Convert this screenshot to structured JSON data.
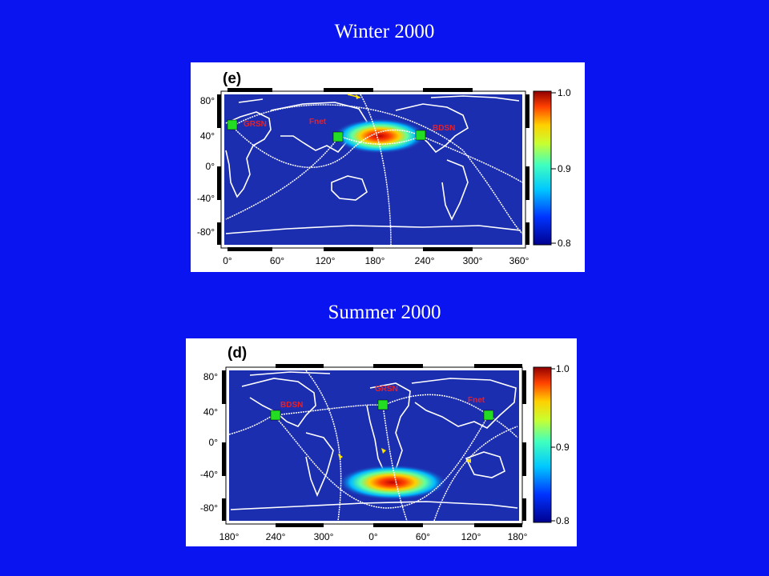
{
  "slide": {
    "title_top": "Winter 2000",
    "title_bottom": "Summer 2000"
  },
  "panels": [
    {
      "id": "e",
      "label": "(e)",
      "lat_ticks": [
        "80°",
        "40°",
        "0°",
        "-40°",
        "-80°"
      ],
      "lon_ticks": [
        "0°",
        "60°",
        "120°",
        "180°",
        "240°",
        "300°",
        "360°"
      ],
      "colorbar_ticks": [
        "1.0",
        "0.9",
        "0.8"
      ],
      "stations": [
        "GRSN",
        "Fnet",
        "BDSN"
      ]
    },
    {
      "id": "d",
      "label": "(d)",
      "lat_ticks": [
        "80°",
        "40°",
        "0°",
        "-40°",
        "-80°"
      ],
      "lon_ticks": [
        "180°",
        "240°",
        "300°",
        "0°",
        "60°",
        "120°",
        "180°"
      ],
      "colorbar_ticks": [
        "1.0",
        "0.9",
        "0.8"
      ],
      "stations": [
        "BDSN",
        "GRSN",
        "Fnet"
      ]
    }
  ],
  "colors": {
    "background": "#0a14f0",
    "ocean": "#1c2eb0",
    "station_marker": "#22dd22",
    "station_label": "#e8202a",
    "ray_path": "#ffffff",
    "arrow": "#ffe400"
  }
}
